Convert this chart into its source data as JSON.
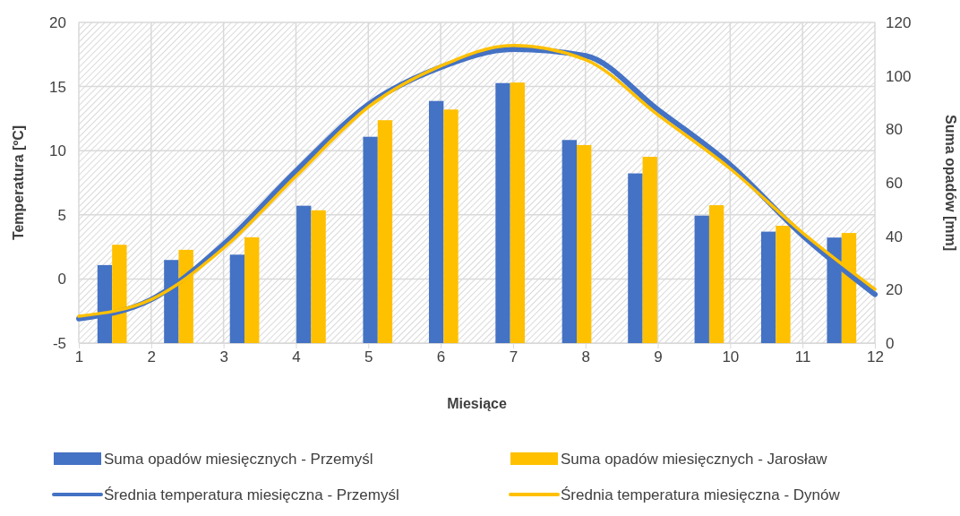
{
  "chart_data": {
    "type": "bar",
    "xlabel": "Miesiące",
    "ylabel": "Temperatura [ºC]",
    "y2label": "Suma opadów [mm]",
    "xlim": [
      1,
      12
    ],
    "xticks": [
      1,
      2,
      3,
      4,
      5,
      6,
      7,
      8,
      9,
      10,
      11,
      12
    ],
    "ylim": [
      -5,
      20
    ],
    "yticks": [
      -5,
      0,
      5,
      10,
      15,
      20
    ],
    "y2lim": [
      0,
      120
    ],
    "y2ticks": [
      0,
      20,
      40,
      60,
      80,
      100,
      120
    ],
    "grid": true,
    "legend": "bottom",
    "series": [
      {
        "name": "Suma opadów miesięcznych - Przemyśl",
        "axis": "y2",
        "color": "#4472c4",
        "x": [
          1.46,
          2.38,
          3.29,
          4.21,
          5.13,
          6.04,
          6.96,
          7.88,
          8.79,
          9.71,
          10.63,
          11.54
        ],
        "values": [
          29.2,
          31.1,
          33.1,
          51.4,
          77.2,
          90.6,
          97.3,
          76.0,
          63.5,
          47.7,
          41.7,
          39.5
        ]
      },
      {
        "name": "Suma opadów miesięcznych - Jarosław",
        "axis": "y2",
        "color": "#ffc000",
        "x": [
          1.46,
          2.38,
          3.29,
          4.21,
          5.13,
          6.04,
          6.96,
          7.88,
          8.79,
          9.71,
          10.63,
          11.54
        ],
        "values": [
          36.8,
          34.9,
          39.6,
          49.7,
          83.4,
          87.4,
          97.5,
          74.1,
          69.7,
          51.6,
          43.9,
          41.2
        ]
      },
      {
        "name": "Średnia temperatura miesięczna - Przemyśl",
        "type": "line",
        "axis": "y",
        "color": "#4472c4",
        "x": [
          1,
          2,
          3,
          4,
          5,
          6,
          7,
          8,
          9,
          10,
          11,
          12
        ],
        "values": [
          -3.1,
          -1.6,
          2.7,
          8.4,
          13.6,
          16.5,
          17.9,
          17.4,
          13.2,
          8.9,
          3.4,
          -1.2
        ]
      },
      {
        "name": "Średnia temperatura miesięczna - Dynów",
        "type": "line",
        "axis": "y",
        "color": "#ffc000",
        "x": [
          1,
          2,
          3,
          4,
          5,
          6,
          7,
          8,
          9,
          10,
          11,
          12
        ],
        "values": [
          -2.9,
          -1.6,
          2.4,
          8.0,
          13.4,
          16.6,
          18.2,
          17.1,
          12.8,
          8.6,
          3.6,
          -0.8
        ]
      }
    ]
  }
}
